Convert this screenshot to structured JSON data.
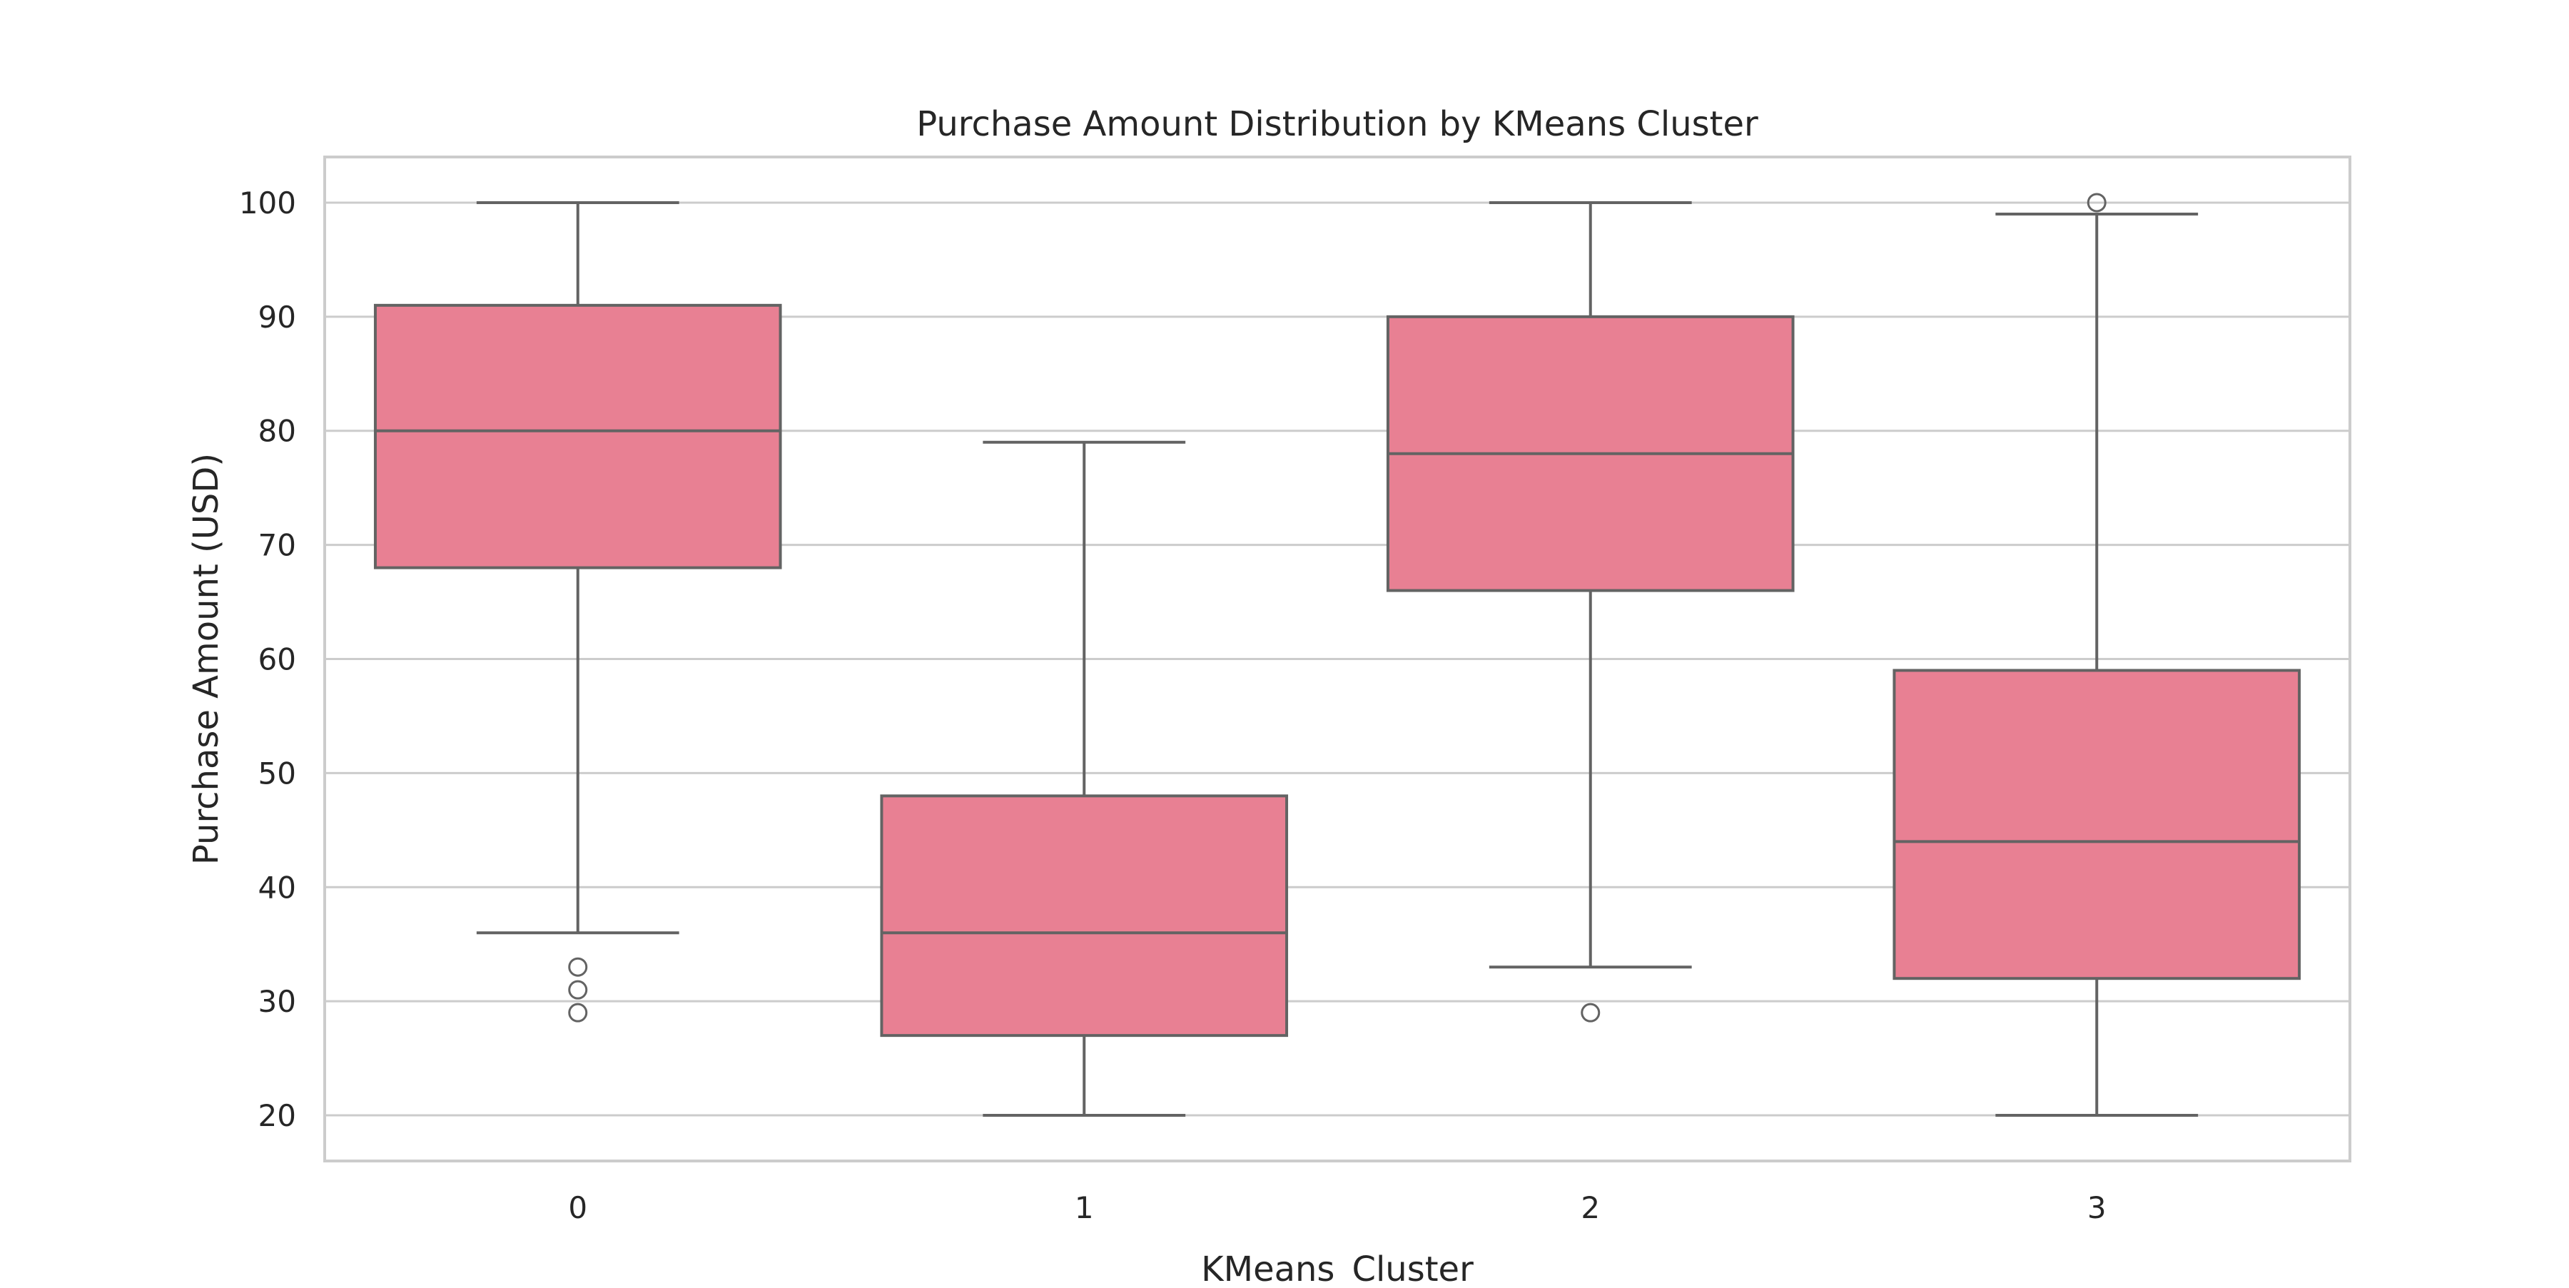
{
  "chart_data": {
    "type": "box",
    "title": "Purchase Amount Distribution by KMeans Cluster",
    "xlabel": "KMeans_Cluster",
    "ylabel": "Purchase Amount (USD)",
    "categories": [
      "0",
      "1",
      "2",
      "3"
    ],
    "ylim": [
      16,
      104
    ],
    "yticks": [
      20,
      30,
      40,
      50,
      60,
      70,
      80,
      90,
      100
    ],
    "grid": true,
    "box_color": "#e88093",
    "line_color": "#636363",
    "grid_color": "#cccccc",
    "boxes": [
      {
        "category": "0",
        "whisker_low": 36,
        "q1": 68,
        "median": 80,
        "q3": 91,
        "whisker_high": 100,
        "outliers": [
          29,
          31,
          33
        ]
      },
      {
        "category": "1",
        "whisker_low": 20,
        "q1": 27,
        "median": 36,
        "q3": 48,
        "whisker_high": 79,
        "outliers": []
      },
      {
        "category": "2",
        "whisker_low": 33,
        "q1": 66,
        "median": 78,
        "q3": 90,
        "whisker_high": 100,
        "outliers": [
          29
        ]
      },
      {
        "category": "3",
        "whisker_low": 20,
        "q1": 32,
        "median": 44,
        "q3": 59,
        "whisker_high": 99,
        "outliers": [
          100
        ]
      }
    ]
  }
}
